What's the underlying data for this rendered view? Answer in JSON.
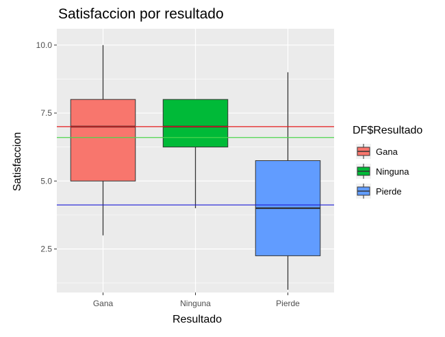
{
  "chart_data": {
    "type": "boxplot",
    "title": "Satisfaccion por resultado",
    "xlabel": "Resultado",
    "ylabel": "Satisfaccion",
    "ylim": [
      0.9,
      10.6
    ],
    "yticks": [
      2.5,
      5.0,
      7.5,
      10.0
    ],
    "ytick_labels": [
      "2.5",
      "5.0",
      "7.5",
      "10.0"
    ],
    "grid": true,
    "legend": {
      "title": "DF$Resultado",
      "position": "right"
    },
    "categories": [
      "Gana",
      "Ninguna",
      "Pierde"
    ],
    "series": [
      {
        "name": "Gana",
        "color": "#F8766D",
        "min": 3.0,
        "q1": 5.0,
        "median": 7.0,
        "q3": 8.0,
        "max": 10.0
      },
      {
        "name": "Ninguna",
        "color": "#00BA38",
        "min": 4.0,
        "q1": 6.25,
        "median": 7.0,
        "q3": 8.0,
        "max": 8.0
      },
      {
        "name": "Pierde",
        "color": "#619CFF",
        "min": 1.0,
        "q1": 2.25,
        "median": 4.0,
        "q3": 5.75,
        "max": 9.0
      }
    ],
    "hlines": [
      {
        "value": 7.0,
        "color": "#e41a1c"
      },
      {
        "value": 6.6,
        "color": "#4cd64c"
      },
      {
        "value": 4.12,
        "color": "#1a1ad6"
      }
    ]
  }
}
